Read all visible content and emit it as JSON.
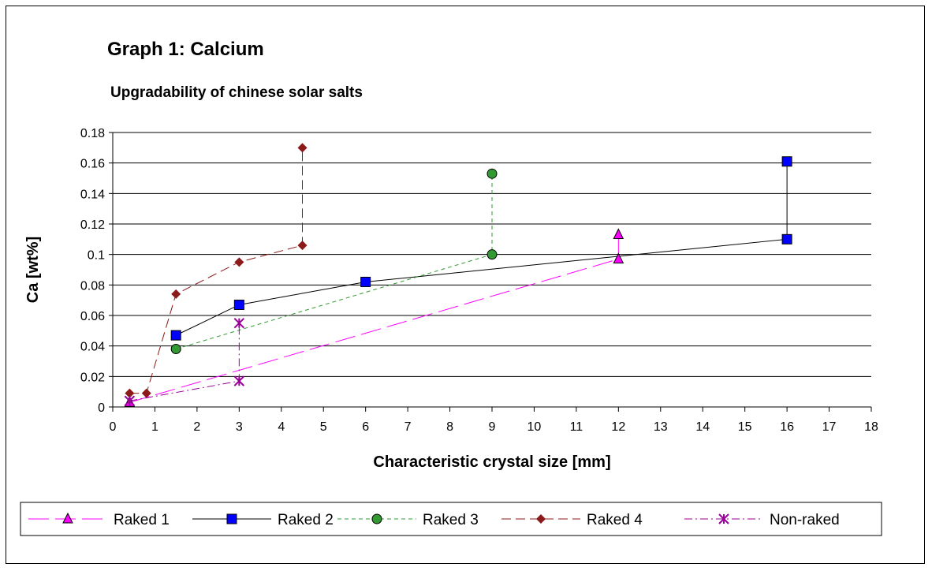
{
  "chart_data": {
    "type": "scatter",
    "title": "Graph 1: Calcium",
    "subtitle": "Upgradability of chinese solar salts",
    "xlabel": "Characteristic crystal size [mm]",
    "ylabel": "Ca [wt%]",
    "xlim": [
      0,
      18
    ],
    "ylim": [
      0,
      0.18
    ],
    "xticks": [
      "0",
      "1",
      "2",
      "3",
      "4",
      "5",
      "6",
      "7",
      "8",
      "9",
      "10",
      "11",
      "12",
      "13",
      "14",
      "15",
      "16",
      "17",
      "18"
    ],
    "yticks": [
      "0",
      "0.02",
      "0.04",
      "0.06",
      "0.08",
      "0.1",
      "0.12",
      "0.14",
      "0.16",
      "0.18"
    ],
    "grid": "horizontal",
    "legend_position": "bottom",
    "series": [
      {
        "name": "Raked 1",
        "color": "#ff00ff",
        "marker": "triangle",
        "marker_fill": "#ff00ff",
        "line_style": "long-dash",
        "segments": [
          [
            [
              0.4,
              0.003
            ],
            [
              12,
              0.097
            ]
          ],
          [
            [
              12,
              0.097
            ],
            [
              12,
              0.113
            ]
          ]
        ],
        "points": [
          [
            0.4,
            0.003
          ],
          [
            12,
            0.097
          ],
          [
            12,
            0.113
          ]
        ]
      },
      {
        "name": "Raked 2",
        "color": "#000000",
        "marker": "square",
        "marker_fill": "#0000ff",
        "line_style": "solid",
        "segments": [
          [
            [
              1.5,
              0.047
            ],
            [
              3,
              0.067
            ],
            [
              6,
              0.082
            ],
            [
              16,
              0.11
            ],
            [
              16,
              0.161
            ]
          ]
        ],
        "points": [
          [
            1.5,
            0.047
          ],
          [
            3,
            0.067
          ],
          [
            6,
            0.082
          ],
          [
            16,
            0.11
          ],
          [
            16,
            0.161
          ]
        ]
      },
      {
        "name": "Raked 3",
        "color": "#339933",
        "marker": "circle",
        "marker_fill": "#339933",
        "line_style": "short-dash",
        "segments": [
          [
            [
              1.5,
              0.038
            ],
            [
              9,
              0.1
            ],
            [
              9,
              0.153
            ]
          ]
        ],
        "points": [
          [
            1.5,
            0.038
          ],
          [
            9,
            0.1
          ],
          [
            9,
            0.153
          ]
        ]
      },
      {
        "name": "Raked 4",
        "color": "#8b1a1a",
        "marker": "diamond",
        "marker_fill": "#8b1a1a",
        "line_style": "medium-dash",
        "segments": [
          [
            [
              0.4,
              0.009
            ],
            [
              0.8,
              0.009
            ],
            [
              1.5,
              0.074
            ],
            [
              3,
              0.095
            ],
            [
              4.5,
              0.106
            ],
            [
              4.5,
              0.17
            ]
          ]
        ],
        "points": [
          [
            0.4,
            0.009
          ],
          [
            0.8,
            0.009
          ],
          [
            1.5,
            0.074
          ],
          [
            3,
            0.095
          ],
          [
            4.5,
            0.106
          ],
          [
            4.5,
            0.17
          ]
        ]
      },
      {
        "name": "Non-raked",
        "color": "#990099",
        "marker": "asterisk",
        "marker_fill": "#990099",
        "line_style": "dash-dot",
        "segments": [
          [
            [
              0.4,
              0.004
            ],
            [
              3,
              0.017
            ],
            [
              3,
              0.055
            ]
          ]
        ],
        "points": [
          [
            0.4,
            0.004
          ],
          [
            3,
            0.017
          ],
          [
            3,
            0.055
          ]
        ]
      }
    ]
  }
}
